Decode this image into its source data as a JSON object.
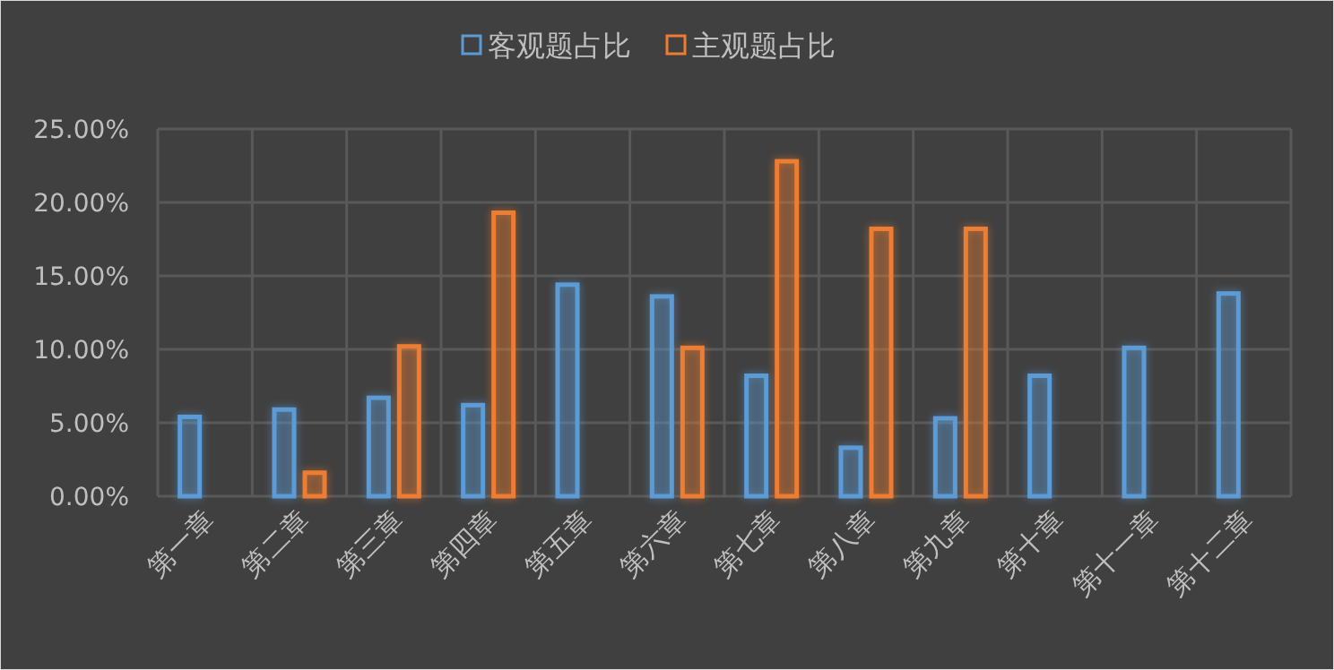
{
  "chart_data": {
    "type": "bar",
    "categories": [
      "第一章",
      "第二章",
      "第三章",
      "第四章",
      "第五章",
      "第六章",
      "第七章",
      "第八章",
      "第九章",
      "第十章",
      "第十一章",
      "第十二章"
    ],
    "series": [
      {
        "name": "客观题占比",
        "color": "#5b9bd5",
        "values": [
          5.4,
          5.9,
          6.7,
          6.2,
          14.4,
          13.6,
          8.2,
          3.3,
          5.3,
          8.2,
          10.1,
          13.8
        ]
      },
      {
        "name": "主观题占比",
        "color": "#ed7d31",
        "values": [
          null,
          1.6,
          10.2,
          19.3,
          null,
          10.1,
          22.8,
          18.2,
          18.2,
          null,
          null,
          null
        ]
      }
    ],
    "ylim": [
      0,
      25
    ],
    "yticks": [
      {
        "value": 0,
        "label": "0.00%"
      },
      {
        "value": 5,
        "label": "5.00%"
      },
      {
        "value": 10,
        "label": "10.00%"
      },
      {
        "value": 15,
        "label": "15.00%"
      },
      {
        "value": 20,
        "label": "20.00%"
      },
      {
        "value": 25,
        "label": "25.00%"
      }
    ],
    "grid": true,
    "legend": "top"
  }
}
